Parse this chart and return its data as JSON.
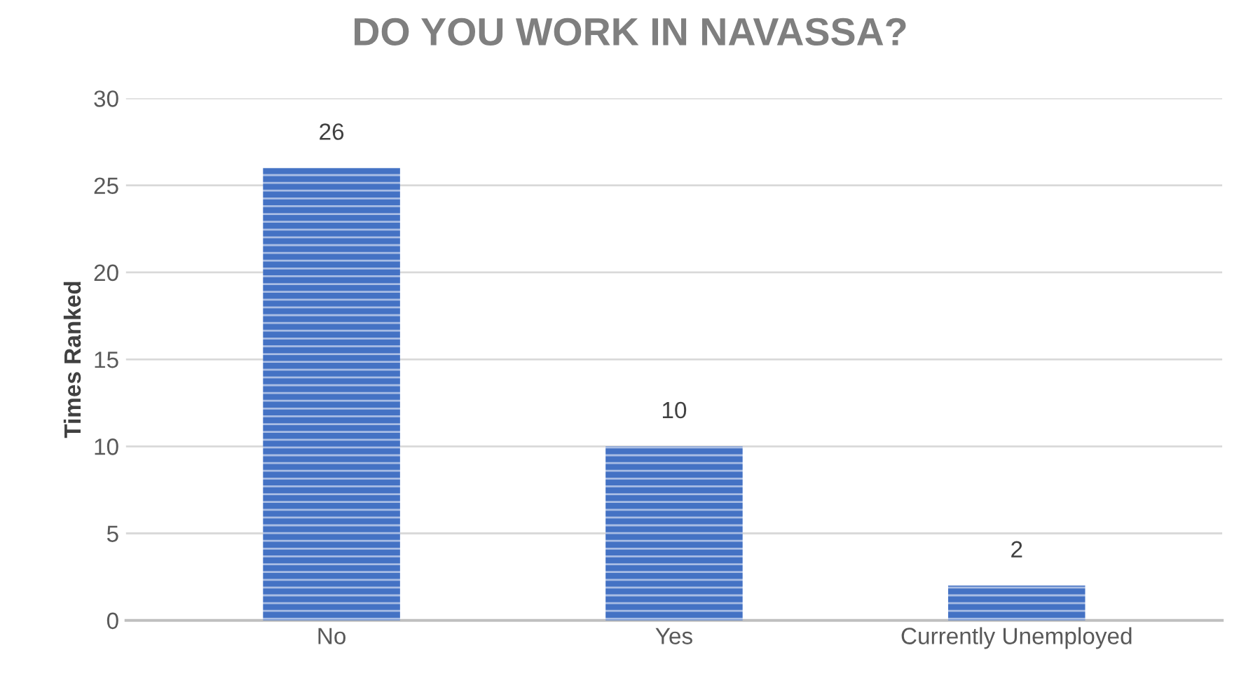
{
  "chart_data": {
    "type": "bar",
    "title": "DO YOU WORK IN NAVASSA?",
    "ylabel": "Times Ranked",
    "categories": [
      "No",
      "Yes",
      "Currently Unemployed"
    ],
    "values": [
      26,
      10,
      2
    ],
    "color": "#4472c4",
    "ylim": [
      0,
      30
    ],
    "yticks": [
      0,
      5,
      10,
      15,
      20,
      25,
      30
    ],
    "grid": "y",
    "data_labels": true
  }
}
